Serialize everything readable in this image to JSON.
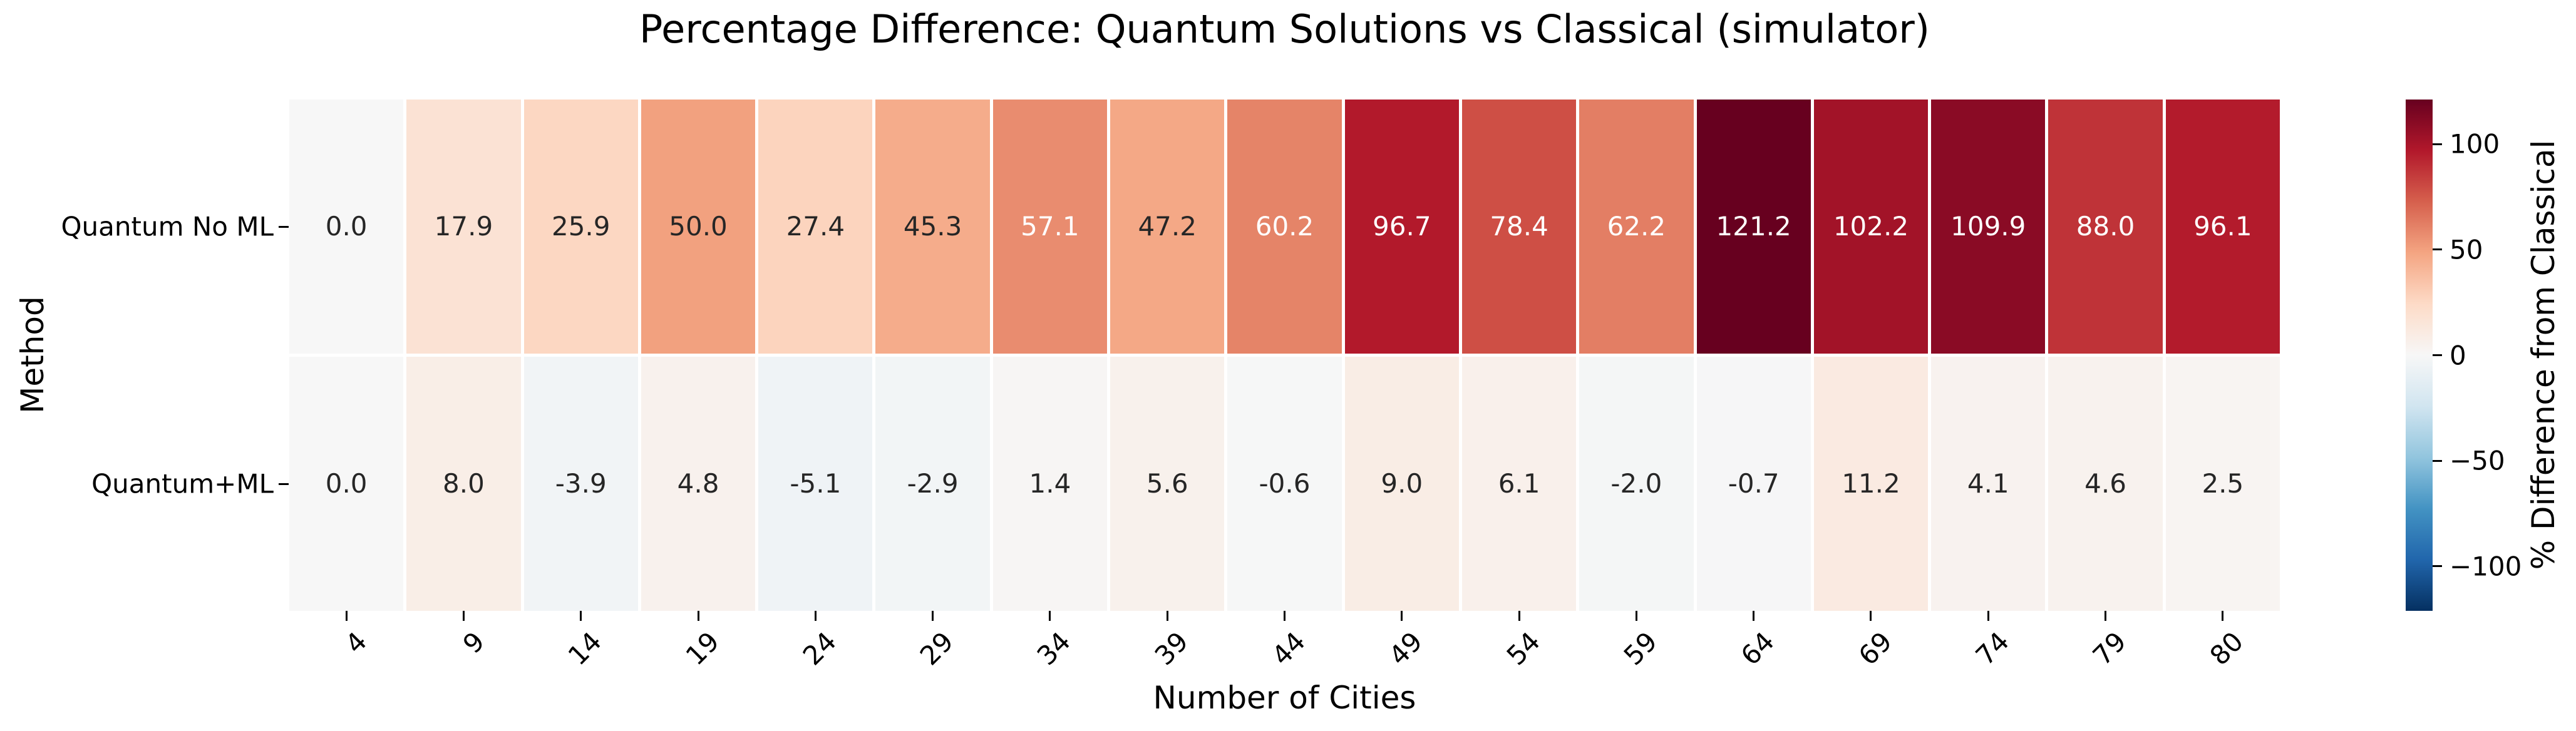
{
  "figure": {
    "background": "#ffffff"
  },
  "chart_data": {
    "type": "heatmap",
    "title": "Percentage Difference: Quantum Solutions vs Classical (simulator)",
    "xlabel": "Number of Cities",
    "ylabel": "Method",
    "rows": [
      "Quantum No ML",
      "Quantum+ML"
    ],
    "columns": [
      "4",
      "9",
      "14",
      "19",
      "24",
      "29",
      "34",
      "39",
      "44",
      "49",
      "54",
      "59",
      "64",
      "69",
      "74",
      "79",
      "80"
    ],
    "values": [
      [
        0.0,
        17.9,
        25.9,
        50.0,
        27.4,
        45.3,
        57.1,
        47.2,
        60.2,
        96.7,
        78.4,
        62.2,
        121.2,
        102.2,
        109.9,
        88.0,
        96.1
      ],
      [
        0.0,
        8.0,
        -3.9,
        4.8,
        -5.1,
        -2.9,
        1.4,
        5.6,
        -0.6,
        9.0,
        6.1,
        -2.0,
        -0.7,
        11.2,
        4.1,
        4.6,
        2.5
      ]
    ],
    "vmin": -121.2,
    "vmax": 121.2,
    "center": 0,
    "annotation_decimals": 1,
    "grid": false,
    "legend_position": "colorbar-right",
    "colormap": "RdBu_r",
    "colormap_stops": [
      "#053061",
      "#2166ac",
      "#4393c3",
      "#92c5de",
      "#d1e5f0",
      "#f7f7f7",
      "#fddbc7",
      "#f4a582",
      "#d6604d",
      "#b2182b",
      "#67001f"
    ],
    "colorbar": {
      "label": "% Difference from Classical",
      "ticks": [
        100,
        50,
        0,
        -50,
        -100
      ],
      "tick_labels": [
        "100",
        "50",
        "0",
        "−50",
        "−100"
      ]
    }
  },
  "colors": {
    "background": "#ffffff",
    "annotation_dark": "#262626",
    "annotation_light": "#ffffff",
    "tick_color": "#000000",
    "text_color": "#000000"
  }
}
